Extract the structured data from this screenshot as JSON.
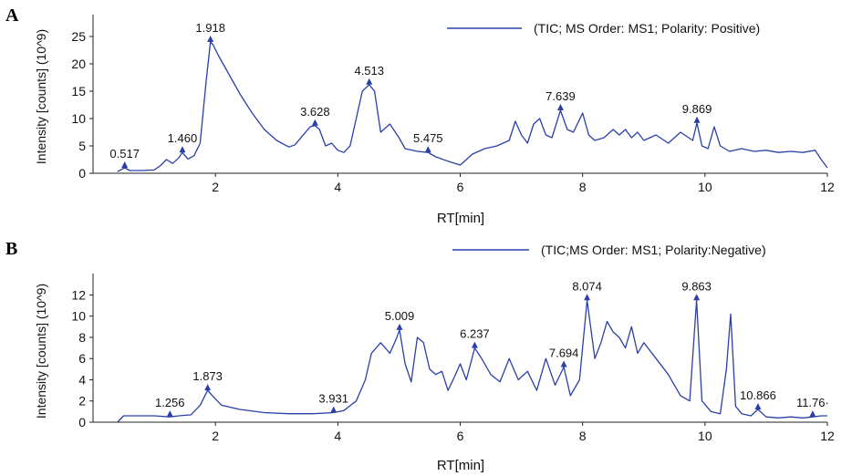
{
  "panels": [
    {
      "letter": "A",
      "chart_data": {
        "type": "line",
        "title": "",
        "xlabel": "RT[min]",
        "ylabel": "Intensity [counts] (10^9)",
        "xlim": [
          0,
          12
        ],
        "ylim": [
          0,
          28
        ],
        "xticks": [
          2,
          4,
          6,
          8,
          10,
          12
        ],
        "yticks": [
          0,
          5,
          10,
          15,
          20,
          25
        ],
        "grid": false,
        "legend": {
          "placement": "top-right",
          "text": "(TIC; MS Order: MS1; Polarity: Positive)"
        },
        "series": [
          {
            "name": "(TIC; MS Order: MS1; Polarity: Positive)",
            "color": "#2a40a8",
            "x": [
              0.4,
              0.517,
              0.6,
              0.8,
              1.0,
              1.1,
              1.2,
              1.3,
              1.4,
              1.46,
              1.55,
              1.65,
              1.75,
              1.85,
              1.918,
              1.96,
              2.05,
              2.2,
              2.4,
              2.6,
              2.8,
              3.0,
              3.2,
              3.3,
              3.45,
              3.55,
              3.628,
              3.7,
              3.8,
              3.9,
              4.0,
              4.1,
              4.2,
              4.3,
              4.4,
              4.513,
              4.6,
              4.7,
              4.85,
              5.0,
              5.1,
              5.3,
              5.475,
              5.6,
              5.8,
              6.0,
              6.2,
              6.4,
              6.6,
              6.8,
              6.9,
              7.0,
              7.1,
              7.2,
              7.3,
              7.4,
              7.5,
              7.639,
              7.75,
              7.85,
              8.0,
              8.1,
              8.2,
              8.35,
              8.5,
              8.6,
              8.7,
              8.8,
              8.9,
              9.0,
              9.2,
              9.4,
              9.6,
              9.8,
              9.869,
              9.95,
              10.05,
              10.15,
              10.25,
              10.4,
              10.6,
              10.8,
              11.0,
              11.2,
              11.4,
              11.6,
              11.8,
              11.9,
              12.0
            ],
            "y": [
              0.3,
              1.0,
              0.5,
              0.5,
              0.6,
              1.4,
              2.5,
              1.8,
              2.8,
              3.8,
              2.6,
              3.2,
              5.5,
              17.0,
              24.0,
              23.5,
              21.5,
              18.5,
              14.5,
              11.0,
              8.0,
              6.0,
              4.8,
              5.2,
              7.2,
              8.5,
              8.7,
              8.0,
              5.0,
              5.5,
              4.2,
              3.8,
              5.0,
              10.0,
              15.0,
              16.2,
              15.0,
              7.5,
              9.0,
              6.5,
              4.5,
              4.0,
              3.8,
              3.0,
              2.2,
              1.5,
              3.5,
              4.5,
              5.0,
              6.0,
              9.5,
              7.0,
              5.5,
              9.0,
              10.0,
              7.0,
              6.5,
              11.5,
              8.0,
              7.5,
              11.0,
              7.0,
              6.0,
              6.5,
              8.0,
              7.0,
              8.0,
              6.5,
              7.5,
              6.0,
              7.0,
              5.5,
              7.5,
              6.0,
              9.2,
              5.0,
              4.5,
              8.5,
              5.0,
              4.0,
              4.5,
              4.0,
              4.2,
              3.8,
              4.0,
              3.8,
              4.2,
              2.5,
              1.0
            ]
          }
        ],
        "annotations": [
          {
            "label": "0.517",
            "x": 0.517,
            "y": 1.0
          },
          {
            "label": "1.460",
            "x": 1.46,
            "y": 3.8
          },
          {
            "label": "1.918",
            "x": 1.918,
            "y": 24.0
          },
          {
            "label": "3.628",
            "x": 3.628,
            "y": 8.7
          },
          {
            "label": "4.513",
            "x": 4.513,
            "y": 16.2
          },
          {
            "label": "5.475",
            "x": 5.475,
            "y": 3.8
          },
          {
            "label": "7.639",
            "x": 7.639,
            "y": 11.5
          },
          {
            "label": "9.869",
            "x": 9.869,
            "y": 9.2
          }
        ]
      }
    },
    {
      "letter": "B",
      "chart_data": {
        "type": "line",
        "title": "",
        "xlabel": "RT[min]",
        "ylabel": "Intensity [counts] (10^9)",
        "xlim": [
          0,
          12
        ],
        "ylim": [
          0,
          13.5
        ],
        "xticks": [
          2,
          4,
          6,
          8,
          10,
          12
        ],
        "yticks": [
          0,
          2,
          4,
          6,
          8,
          10,
          12
        ],
        "grid": false,
        "legend": {
          "placement": "top-right",
          "text": "(TIC;MS Order: MS1; Polarity:Negative)"
        },
        "series": [
          {
            "name": "(TIC;MS Order: MS1; Polarity:Negative)",
            "color": "#2a40a8",
            "x": [
              0.4,
              0.5,
              0.8,
              1.0,
              1.256,
              1.4,
              1.6,
              1.75,
              1.873,
              1.95,
              2.1,
              2.4,
              2.8,
              3.2,
              3.6,
              3.931,
              4.1,
              4.3,
              4.45,
              4.55,
              4.7,
              4.85,
              4.95,
              5.009,
              5.1,
              5.2,
              5.3,
              5.4,
              5.5,
              5.6,
              5.7,
              5.8,
              5.9,
              6.0,
              6.1,
              6.237,
              6.35,
              6.5,
              6.65,
              6.8,
              6.95,
              7.1,
              7.25,
              7.4,
              7.55,
              7.694,
              7.8,
              7.95,
              8.074,
              8.2,
              8.3,
              8.4,
              8.5,
              8.6,
              8.7,
              8.8,
              8.9,
              9.0,
              9.2,
              9.4,
              9.6,
              9.75,
              9.863,
              9.95,
              10.1,
              10.25,
              10.35,
              10.42,
              10.5,
              10.6,
              10.75,
              10.866,
              11.0,
              11.2,
              11.4,
              11.6,
              11.76,
              11.9,
              12.0
            ],
            "y": [
              0,
              0.6,
              0.6,
              0.6,
              0.5,
              0.6,
              0.7,
              1.6,
              3.0,
              2.5,
              1.6,
              1.2,
              0.9,
              0.8,
              0.8,
              0.9,
              1.1,
              2.0,
              4.0,
              6.5,
              7.5,
              6.5,
              7.8,
              8.7,
              5.5,
              3.8,
              8.0,
              7.5,
              5.0,
              4.5,
              4.8,
              3.0,
              4.2,
              5.5,
              4.0,
              7.0,
              6.0,
              4.5,
              3.8,
              6.0,
              4.0,
              4.8,
              3.0,
              6.0,
              3.5,
              5.2,
              2.5,
              4.0,
              11.5,
              6.0,
              7.5,
              9.5,
              8.5,
              8.0,
              7.0,
              9.0,
              6.5,
              7.5,
              6.0,
              4.5,
              2.5,
              2.0,
              11.5,
              2.0,
              1.0,
              0.8,
              5.0,
              10.2,
              1.5,
              0.8,
              0.6,
              1.2,
              0.5,
              0.4,
              0.5,
              0.4,
              0.5,
              0.6,
              0.6
            ]
          }
        ],
        "annotations": [
          {
            "label": "1.256",
            "x": 1.256,
            "y": 0.5
          },
          {
            "label": "1.873",
            "x": 1.873,
            "y": 3.0
          },
          {
            "label": "3.931",
            "x": 3.931,
            "y": 0.9
          },
          {
            "label": "5.009",
            "x": 5.009,
            "y": 8.7
          },
          {
            "label": "6.237",
            "x": 6.237,
            "y": 7.0
          },
          {
            "label": "7.694",
            "x": 7.694,
            "y": 5.2
          },
          {
            "label": "8.074",
            "x": 8.074,
            "y": 11.5
          },
          {
            "label": "9.863",
            "x": 9.863,
            "y": 11.5
          },
          {
            "label": "10.866",
            "x": 10.866,
            "y": 1.2
          },
          {
            "label": "11.76·",
            "x": 11.76,
            "y": 0.5
          }
        ]
      }
    }
  ]
}
